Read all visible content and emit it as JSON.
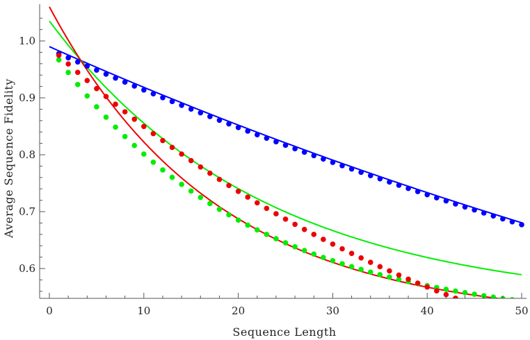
{
  "chart_data": {
    "type": "scatter",
    "title": "",
    "xlabel": "Sequence Length",
    "ylabel": "Average Sequence Fidelity",
    "xlim": [
      0,
      51
    ],
    "ylim": [
      0.54,
      1.08
    ],
    "x_ticks": [
      0,
      10,
      20,
      30,
      40,
      50
    ],
    "y_ticks": [
      0.6,
      0.7,
      0.8,
      0.9,
      1.0
    ],
    "x_tick_labels": [
      "0",
      "10",
      "20",
      "30",
      "40",
      "50"
    ],
    "y_tick_labels": [
      "0.6",
      "0.7",
      "0.8",
      "0.9",
      "1.0"
    ],
    "grid": false,
    "legend": "none",
    "series": [
      {
        "color": "#0000ff",
        "marker": "point",
        "points_x": [
          1,
          50
        ],
        "points_model": "decay",
        "fit_color": "#0000ff",
        "decay_params": {
          "A": 0.56,
          "p": 0.9855,
          "B": 0.43
        }
      },
      {
        "color": "#00ee00",
        "marker": "point",
        "decay_params": {
          "A": 0.68,
          "p": 0.9525,
          "B": 0.52
        },
        "fit_params": {
          "A": 0.5,
          "p": 0.9565,
          "B": 0.535
        }
      },
      {
        "color": "#ee0000",
        "marker": "point",
        "decay_params": {
          "A": 0.72,
          "p": 0.9575,
          "B": 0.24
        },
        "fit_params": {
          "A": 0.55,
          "p": 0.945,
          "B": 0.51
        }
      }
    ]
  }
}
